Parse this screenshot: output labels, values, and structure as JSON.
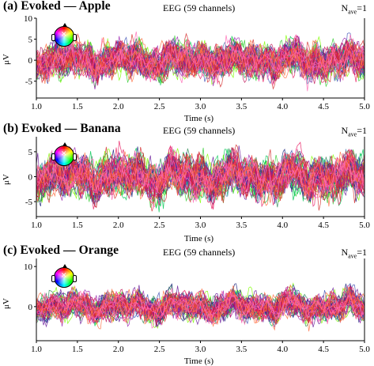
{
  "colors": {
    "channel_palette": [
      "#7fff00",
      "#32cd32",
      "#00c853",
      "#2e8b57",
      "#4682b4",
      "#3f51b5",
      "#1a237e",
      "#6a1b9a",
      "#9c27b0",
      "#c2185b",
      "#e91e63",
      "#d32f2f",
      "#ff7043",
      "#ff69b4"
    ],
    "axis": "#000000"
  },
  "chart_data": [
    {
      "type": "line",
      "title": "(a) Evoked — Apple",
      "subtitle": "EEG (59 channels)",
      "nave": {
        "prefix": "N",
        "sub": "ave",
        "suffix": "=1"
      },
      "xlabel": "Time (s)",
      "ylabel": "μV",
      "xlim": [
        1.0,
        5.0
      ],
      "ylim": [
        -9,
        10
      ],
      "xticks": [
        "1.0",
        "1.5",
        "2.0",
        "2.5",
        "3.0",
        "3.5",
        "4.0",
        "4.5",
        "5.0"
      ],
      "yticks": [
        10,
        5,
        0,
        -5
      ],
      "n_channels": 59,
      "grid": false,
      "legend": "none",
      "series_summary": {
        "envelope_min": -8.7,
        "envelope_max": 8.5,
        "mean": 0.0,
        "typical_amplitude": 3.0
      }
    },
    {
      "type": "line",
      "title": "(b) Evoked — Banana",
      "subtitle": "EEG (59 channels)",
      "nave": {
        "prefix": "N",
        "sub": "ave",
        "suffix": "=1"
      },
      "xlabel": "Time (s)",
      "ylabel": "μV",
      "xlim": [
        1.0,
        5.0
      ],
      "ylim": [
        -8,
        8
      ],
      "xticks": [
        "1.0",
        "1.5",
        "2.0",
        "2.5",
        "3.0",
        "3.5",
        "4.0",
        "4.5",
        "5.0"
      ],
      "yticks": [
        5,
        0,
        -5
      ],
      "n_channels": 59,
      "grid": false,
      "legend": "none",
      "series_summary": {
        "envelope_min": -7.5,
        "envelope_max": 7.3,
        "mean": 0.0,
        "typical_amplitude": 3.0
      }
    },
    {
      "type": "line",
      "title": "(c) Evoked — Orange",
      "subtitle": "EEG (59 channels)",
      "nave": {
        "prefix": "N",
        "sub": "ave",
        "suffix": "=1"
      },
      "xlabel": "Time (s)",
      "ylabel": "μV",
      "xlim": [
        1.0,
        5.0
      ],
      "ylim": [
        -8.5,
        12
      ],
      "xticks": [
        "1.0",
        "1.5",
        "2.0",
        "2.5",
        "3.0",
        "3.5",
        "4.0",
        "4.5",
        "5.0"
      ],
      "yticks": [
        10,
        0
      ],
      "n_channels": 59,
      "grid": false,
      "legend": "none",
      "series_summary": {
        "envelope_min": -7.0,
        "envelope_max": 10.5,
        "mean": 0.0,
        "typical_amplitude": 2.5
      }
    }
  ]
}
